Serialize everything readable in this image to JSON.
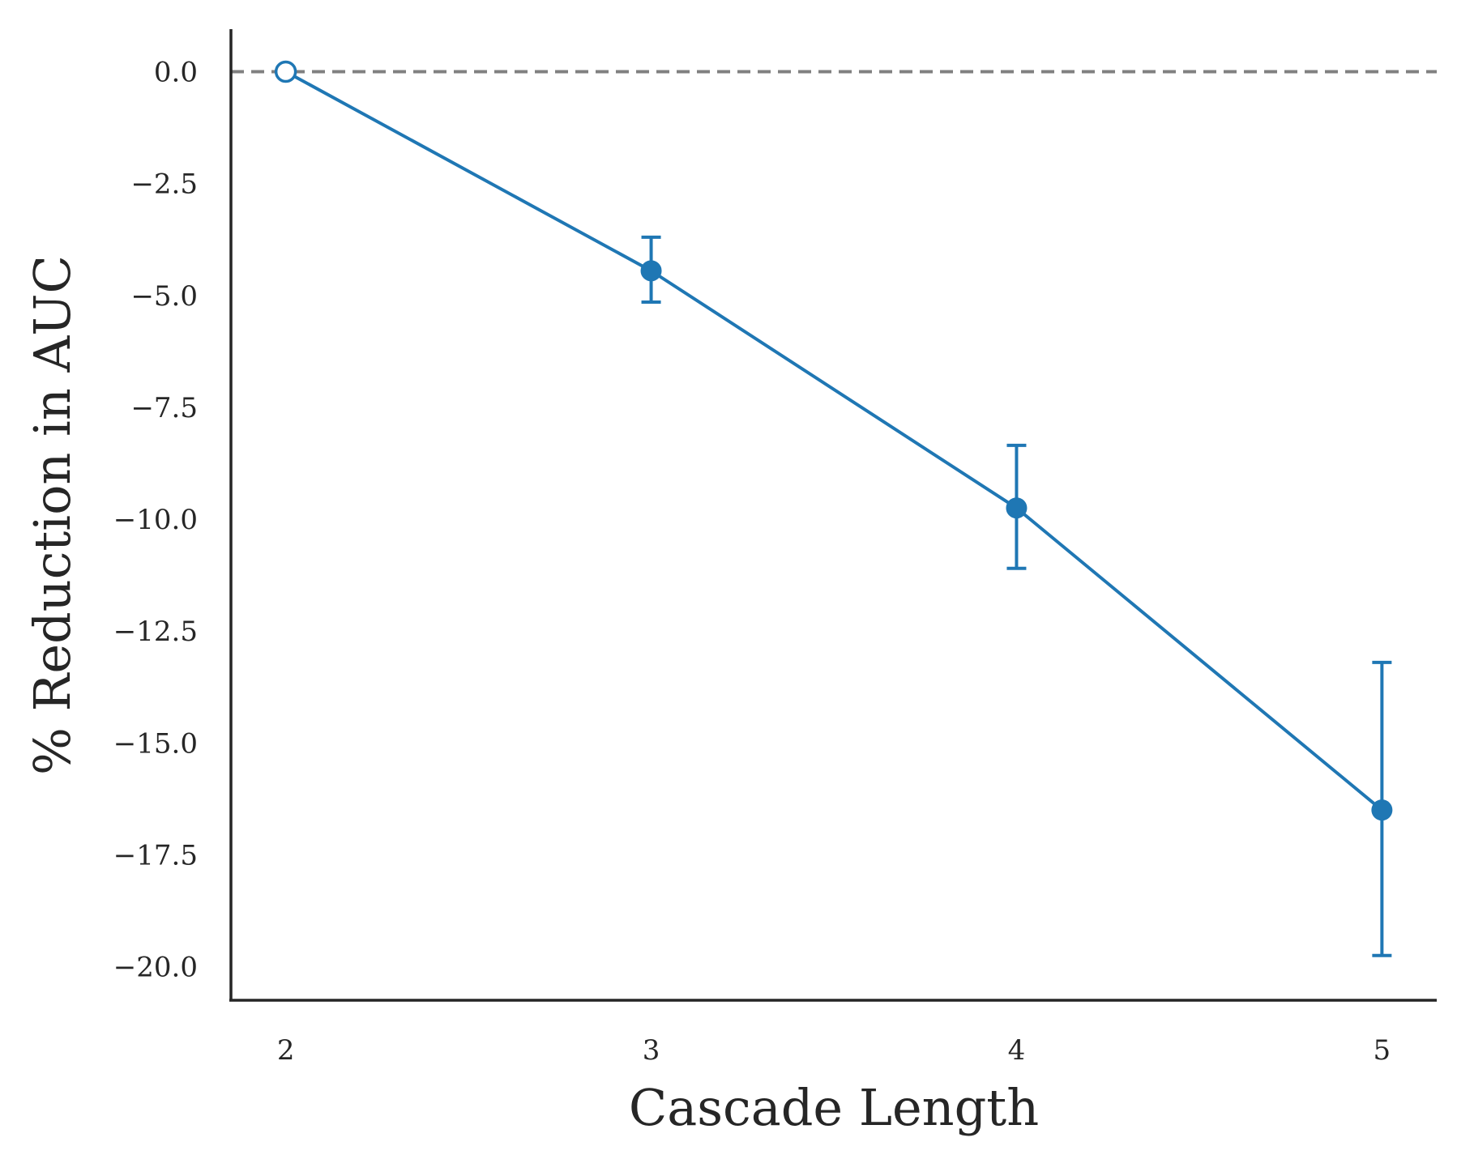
{
  "chart_data": {
    "type": "line",
    "xlabel": "Cascade Length",
    "ylabel": "% Reduction in AUC",
    "x": [
      2,
      3,
      4,
      5
    ],
    "x_tick_labels": [
      "2",
      "3",
      "4",
      "5"
    ],
    "y_ticks": [
      0.0,
      -2.5,
      -5.0,
      -7.5,
      -10.0,
      -12.5,
      -15.0,
      -17.5,
      -20.0
    ],
    "y_tick_labels": [
      "0.0",
      "−2.5",
      "−5.0",
      "−7.5",
      "−10.0",
      "−12.5",
      "−15.0",
      "−17.5",
      "−20.0"
    ],
    "xlim": [
      1.85,
      5.15
    ],
    "ylim": [
      -20.75,
      0.95
    ],
    "series": [
      {
        "values": [
          0.0,
          -4.45,
          -9.75,
          -16.5
        ],
        "error_low": [
          null,
          -5.15,
          -11.1,
          -19.75
        ],
        "error_high": [
          null,
          -3.7,
          -8.35,
          -13.2
        ],
        "hollow_markers": [
          true,
          false,
          false,
          false
        ],
        "color": "#1f77b4"
      }
    ],
    "reference_line": {
      "y": 0.0,
      "style": "dashed",
      "color": "#808080"
    },
    "grid": false
  }
}
